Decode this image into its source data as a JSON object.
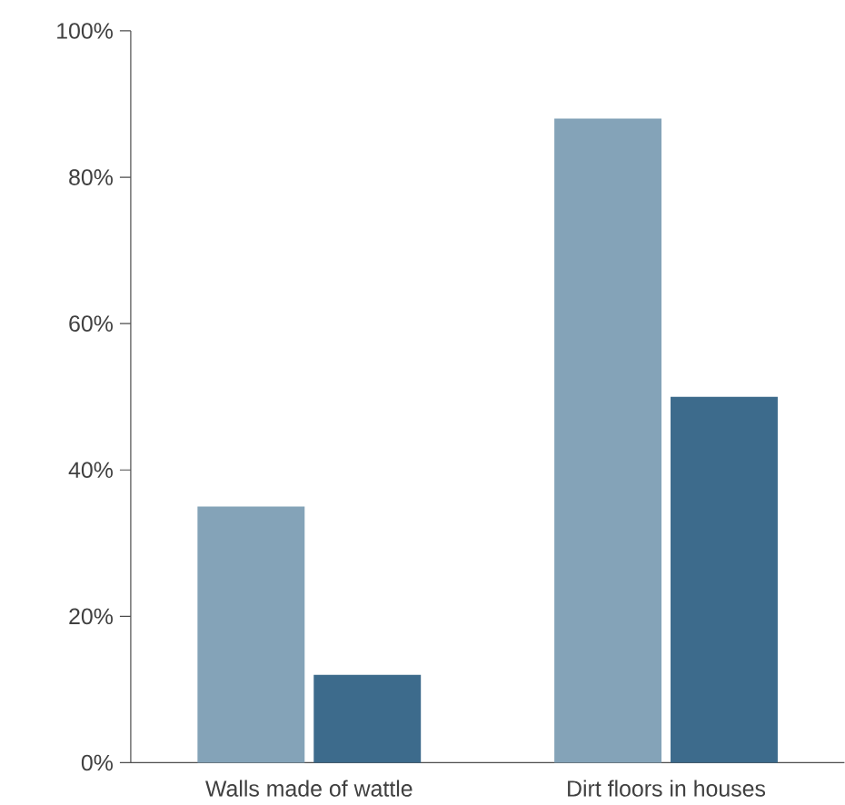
{
  "chart_data": {
    "type": "bar",
    "categories": [
      "Walls made of wattle",
      "Dirt floors in houses"
    ],
    "series": [
      {
        "color": "#84a3b8",
        "values": [
          35,
          88
        ]
      },
      {
        "color": "#3d6b8c",
        "values": [
          12,
          50
        ]
      }
    ],
    "ylim": [
      0,
      100
    ],
    "yticks": [
      {
        "value": 0,
        "label": "0%"
      },
      {
        "value": 20,
        "label": "20%"
      },
      {
        "value": 40,
        "label": "40%"
      },
      {
        "value": 60,
        "label": "60%"
      },
      {
        "value": 80,
        "label": "80%"
      },
      {
        "value": 100,
        "label": "100%"
      }
    ],
    "grid": false
  }
}
